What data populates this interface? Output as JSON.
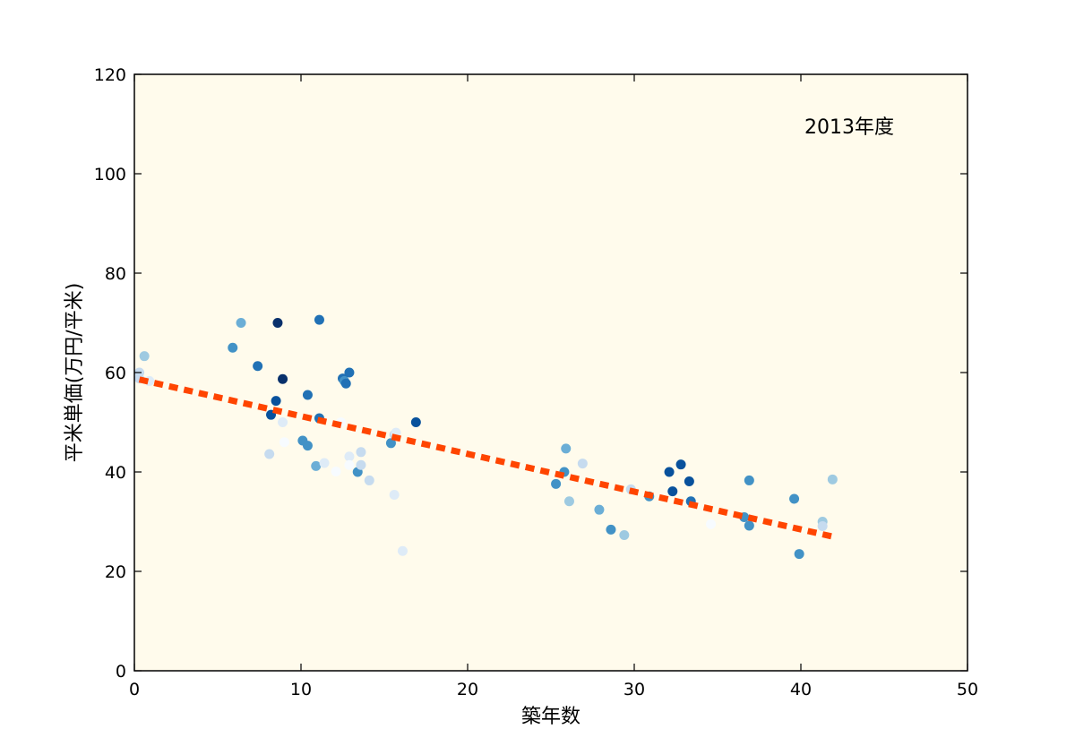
{
  "chart_data": {
    "type": "scatter",
    "xlabel": "築年数",
    "ylabel": "平米単価(万円/平米)",
    "annotation": "2013年度",
    "xlim": [
      0,
      50
    ],
    "ylim": [
      0,
      120
    ],
    "xticks": [
      "0",
      "10",
      "20",
      "30",
      "40",
      "50"
    ],
    "yticks": [
      "0",
      "20",
      "40",
      "60",
      "80",
      "100",
      "120"
    ],
    "grid": false,
    "plot_background": "#fffbec",
    "trendline": {
      "style": "dotted",
      "color": "#ff4500",
      "x": [
        0.3,
        41.9
      ],
      "y": [
        58.6,
        27.0
      ]
    },
    "points": [
      {
        "x": 0.3,
        "y": 60.0,
        "color": "#c6dbef"
      },
      {
        "x": 0.3,
        "y": 58.8,
        "color": "#c6dbef"
      },
      {
        "x": 0.6,
        "y": 63.3,
        "color": "#9ecae1"
      },
      {
        "x": 0.9,
        "y": 58.3,
        "color": "#deebf7"
      },
      {
        "x": 5.9,
        "y": 65.0,
        "color": "#4292c6"
      },
      {
        "x": 6.4,
        "y": 70.0,
        "color": "#6baed6"
      },
      {
        "x": 7.4,
        "y": 61.3,
        "color": "#2171b5"
      },
      {
        "x": 8.1,
        "y": 43.6,
        "color": "#c6dbef"
      },
      {
        "x": 8.2,
        "y": 51.5,
        "color": "#08519c"
      },
      {
        "x": 8.5,
        "y": 54.3,
        "color": "#08519c"
      },
      {
        "x": 8.6,
        "y": 70.0,
        "color": "#08306b"
      },
      {
        "x": 8.9,
        "y": 58.7,
        "color": "#08306b"
      },
      {
        "x": 8.9,
        "y": 50.0,
        "color": "#deebf7"
      },
      {
        "x": 9.0,
        "y": 46.0,
        "color": "#f7fbff"
      },
      {
        "x": 10.1,
        "y": 46.3,
        "color": "#4292c6"
      },
      {
        "x": 10.4,
        "y": 45.3,
        "color": "#4292c6"
      },
      {
        "x": 10.4,
        "y": 55.5,
        "color": "#2171b5"
      },
      {
        "x": 10.9,
        "y": 41.2,
        "color": "#6baed6"
      },
      {
        "x": 11.1,
        "y": 70.6,
        "color": "#2171b5"
      },
      {
        "x": 11.1,
        "y": 50.8,
        "color": "#2171b5"
      },
      {
        "x": 11.4,
        "y": 41.8,
        "color": "#deebf7"
      },
      {
        "x": 12.1,
        "y": 40.1,
        "color": "#f7fbff"
      },
      {
        "x": 12.4,
        "y": 50.0,
        "color": "#f7fbff"
      },
      {
        "x": 12.5,
        "y": 58.8,
        "color": "#2171b5"
      },
      {
        "x": 12.6,
        "y": 58.3,
        "color": "#4292c6"
      },
      {
        "x": 12.7,
        "y": 57.8,
        "color": "#2171b5"
      },
      {
        "x": 12.9,
        "y": 60.0,
        "color": "#2171b5"
      },
      {
        "x": 12.9,
        "y": 43.1,
        "color": "#deebf7"
      },
      {
        "x": 12.9,
        "y": 41.4,
        "color": "#f7fbff"
      },
      {
        "x": 13.4,
        "y": 40.0,
        "color": "#4292c6"
      },
      {
        "x": 13.6,
        "y": 44.0,
        "color": "#c6dbef"
      },
      {
        "x": 13.6,
        "y": 41.4,
        "color": "#c6dbef"
      },
      {
        "x": 14.1,
        "y": 38.3,
        "color": "#c6dbef"
      },
      {
        "x": 15.4,
        "y": 45.8,
        "color": "#4292c6"
      },
      {
        "x": 15.6,
        "y": 35.4,
        "color": "#deebf7"
      },
      {
        "x": 15.6,
        "y": 47.5,
        "color": "#c6dbef"
      },
      {
        "x": 15.7,
        "y": 47.9,
        "color": "#deebf7"
      },
      {
        "x": 16.1,
        "y": 24.1,
        "color": "#deebf7"
      },
      {
        "x": 16.9,
        "y": 50.0,
        "color": "#08519c"
      },
      {
        "x": 25.3,
        "y": 37.6,
        "color": "#4292c6"
      },
      {
        "x": 25.8,
        "y": 40.0,
        "color": "#4292c6"
      },
      {
        "x": 25.9,
        "y": 44.7,
        "color": "#6baed6"
      },
      {
        "x": 26.1,
        "y": 34.1,
        "color": "#9ecae1"
      },
      {
        "x": 26.9,
        "y": 41.7,
        "color": "#c6dbef"
      },
      {
        "x": 27.9,
        "y": 32.4,
        "color": "#6baed6"
      },
      {
        "x": 28.6,
        "y": 28.4,
        "color": "#4292c6"
      },
      {
        "x": 29.4,
        "y": 27.3,
        "color": "#9ecae1"
      },
      {
        "x": 29.8,
        "y": 36.5,
        "color": "#c6dbef"
      },
      {
        "x": 30.9,
        "y": 35.1,
        "color": "#4292c6"
      },
      {
        "x": 32.1,
        "y": 40.0,
        "color": "#08519c"
      },
      {
        "x": 32.3,
        "y": 36.1,
        "color": "#08519c"
      },
      {
        "x": 32.8,
        "y": 41.5,
        "color": "#08519c"
      },
      {
        "x": 33.3,
        "y": 38.1,
        "color": "#08519c"
      },
      {
        "x": 33.4,
        "y": 34.1,
        "color": "#2171b5"
      },
      {
        "x": 34.6,
        "y": 29.5,
        "color": "#f7fbff"
      },
      {
        "x": 36.6,
        "y": 30.9,
        "color": "#4292c6"
      },
      {
        "x": 36.9,
        "y": 38.3,
        "color": "#4292c6"
      },
      {
        "x": 36.9,
        "y": 29.2,
        "color": "#4292c6"
      },
      {
        "x": 39.6,
        "y": 34.6,
        "color": "#4292c6"
      },
      {
        "x": 39.9,
        "y": 23.5,
        "color": "#4292c6"
      },
      {
        "x": 41.3,
        "y": 30.0,
        "color": "#9ecae1"
      },
      {
        "x": 41.3,
        "y": 29.1,
        "color": "#c6dbef"
      },
      {
        "x": 41.9,
        "y": 38.5,
        "color": "#9ecae1"
      }
    ]
  }
}
